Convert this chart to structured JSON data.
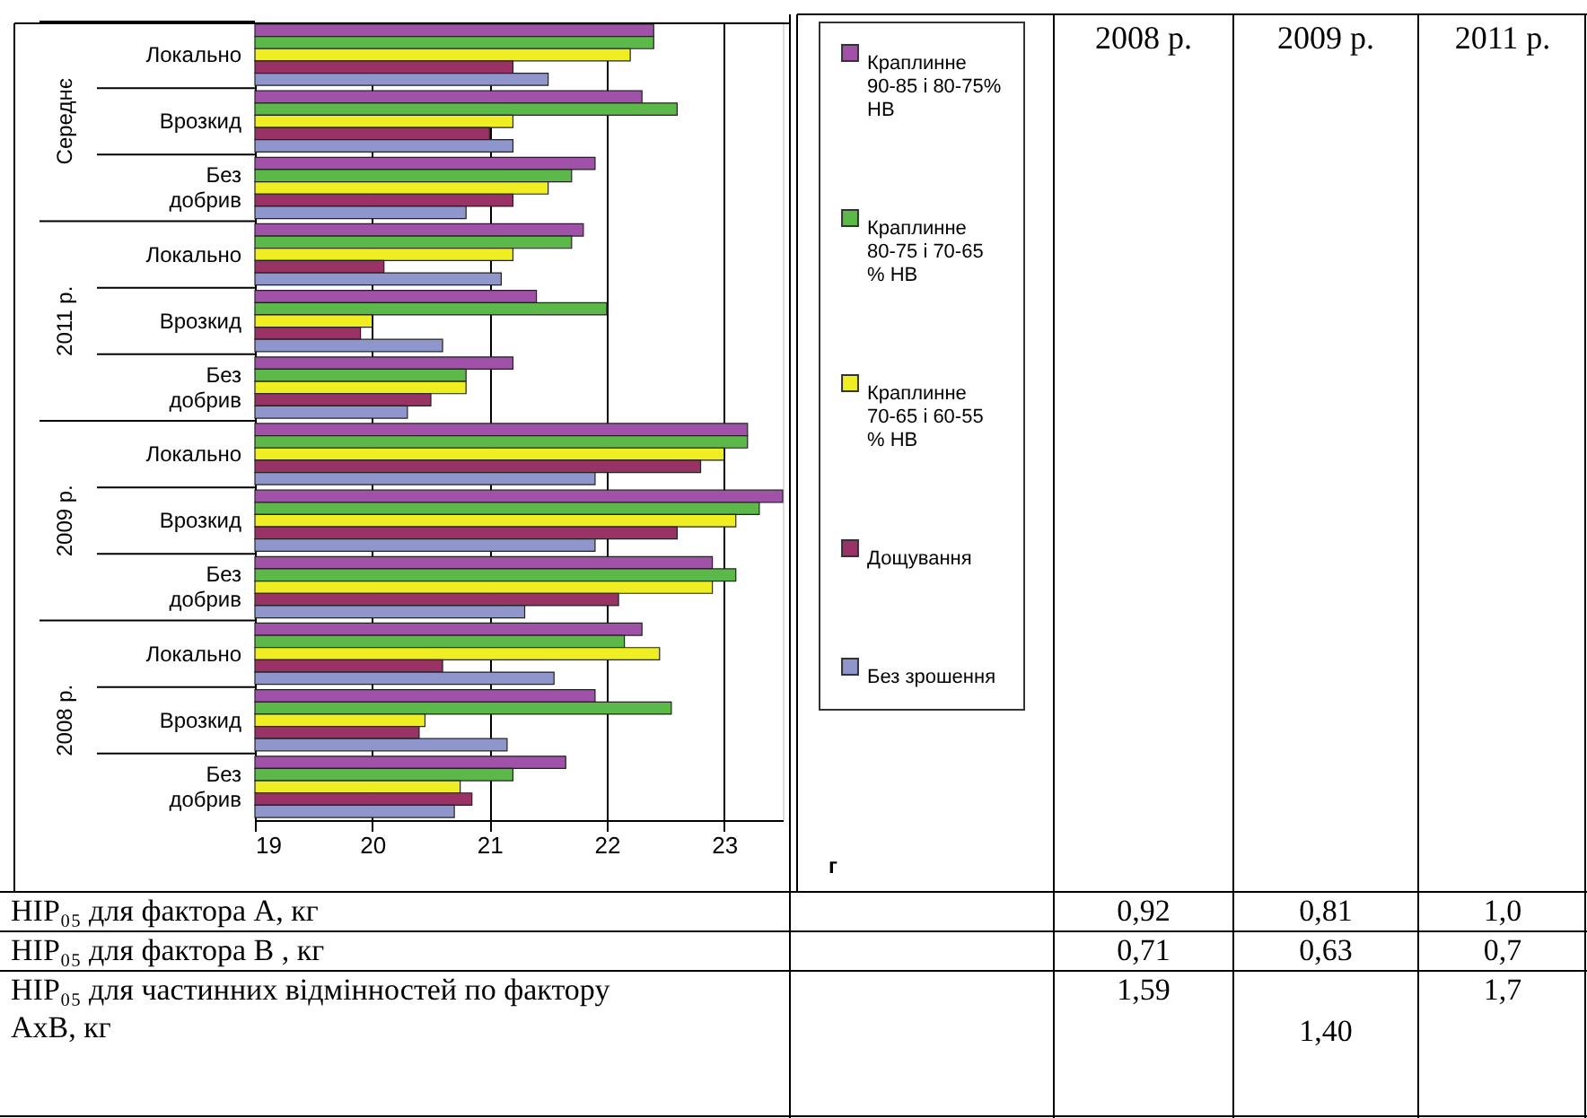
{
  "chart_data": {
    "type": "bar",
    "orientation": "horizontal",
    "xlabel": "г",
    "categories": [
      "Локально",
      "Врозкид",
      "Без добрив",
      "Локально",
      "Врозкид",
      "Без добрив",
      "Локально",
      "Врозкид",
      "Без добрив",
      "Локально",
      "Врозкид",
      "Без добрив"
    ],
    "series": [
      {
        "name": "Краплинне 90-85 і 80-75% НВ",
        "color": "#a052a8",
        "values": [
          22.4,
          22.3,
          21.9,
          21.8,
          21.4,
          21.2,
          23.2,
          23.5,
          22.9,
          22.3,
          21.9,
          21.65
        ]
      },
      {
        "name": "Краплинне 80-75 і 70-65 % НВ",
        "color": "#5cb848",
        "values": [
          22.4,
          22.6,
          21.7,
          21.7,
          22.0,
          20.8,
          23.2,
          23.3,
          23.1,
          22.15,
          22.55,
          21.2
        ]
      },
      {
        "name": "Краплинне 70-65 і 60-55 % НВ",
        "color": "#eeee22",
        "values": [
          22.2,
          21.2,
          21.5,
          21.2,
          20.0,
          20.8,
          23.0,
          23.1,
          22.9,
          22.45,
          20.45,
          20.75
        ]
      },
      {
        "name": "Дощування",
        "color": "#993366",
        "values": [
          21.2,
          21.0,
          21.2,
          20.1,
          19.9,
          20.5,
          22.8,
          22.6,
          22.1,
          20.6,
          20.4,
          20.85
        ]
      },
      {
        "name": "Без зрошення",
        "color": "#8f96cc",
        "values": [
          21.5,
          21.2,
          20.8,
          21.1,
          20.6,
          20.3,
          21.9,
          21.9,
          21.3,
          21.55,
          21.15,
          20.7
        ]
      }
    ],
    "xlim": [
      19,
      23.5
    ],
    "xticks": [
      19,
      20,
      21,
      22,
      23
    ],
    "grid": "x",
    "legend": "right",
    "annotations": [
      "Середнє",
      "2011 р.",
      "2009 р.",
      "2008 р.",
      "2008 р.",
      "2009 р.",
      "2011 р.",
      "НІР₀₅ для фактора А, кг",
      "0,92",
      "0,81",
      "1,0",
      "НІР₀₅ для фактора В , кг",
      "0,71",
      "0,63",
      "0,7",
      "НІР₀₅ для частинних відмінностей по фактору АхВ, кг",
      "1,59",
      "1,40",
      "1,7"
    ]
  }
}
